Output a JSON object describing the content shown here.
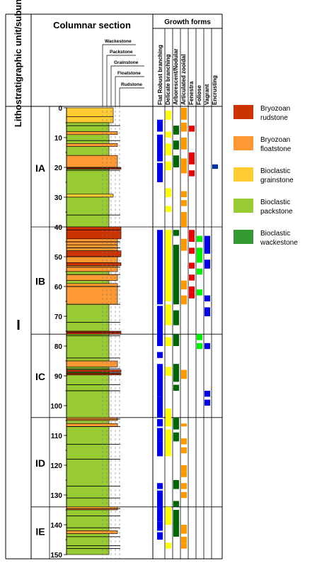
{
  "header": {
    "unit_label": "Lithostratigraphic unit/subunit",
    "columnar_title": "Columnar section",
    "growth_title": "Growth forms"
  },
  "texture_scale": [
    "Wackestone",
    "Packstone",
    "Grainstone",
    "Floatstone",
    "Rudstone"
  ],
  "growth_forms": [
    "Flat Robust branching",
    "Delicate branching",
    "Arborescent/Nodular",
    "Articulated zooidal",
    "Fenestra",
    "Foliose",
    "Vagrant",
    "Encrusting"
  ],
  "unit": "I",
  "subunits": [
    {
      "label": "IA",
      "top": 0,
      "bottom": 40
    },
    {
      "label": "IB",
      "top": 40,
      "bottom": 76
    },
    {
      "label": "IC",
      "top": 76,
      "bottom": 104
    },
    {
      "label": "ID",
      "top": 104,
      "bottom": 134
    },
    {
      "label": "IE",
      "top": 134,
      "bottom": 150
    }
  ],
  "depth_ticks": [
    "0",
    "10",
    "20",
    "30",
    "40",
    "50",
    "60",
    "70",
    "80",
    "90",
    "100",
    "110",
    "120",
    "130",
    "140",
    "150"
  ],
  "colors": {
    "rudstone": "#cc3300",
    "floatstone": "#ff9933",
    "grainstone": "#ffcc33",
    "packstone": "#99cc33",
    "wackestone": "#339933",
    "flat_robust": "#0000ee",
    "delicate": "#ffff00",
    "arborescent": "#006600",
    "articulated": "#ff9900",
    "fenestra": "#ee0000",
    "foliose": "#00ee00",
    "vagrant": "#0000ee",
    "encrusting": "#003399"
  },
  "legend": [
    {
      "label": "Bryozoan rudstone",
      "color": "#cc3300"
    },
    {
      "label": "Bryozoan floatstone",
      "color": "#ff9933"
    },
    {
      "label": "Bioclastic grainstone",
      "color": "#ffcc33"
    },
    {
      "label": "Bioclastic packstone",
      "color": "#99cc33"
    },
    {
      "label": "Bioclastic wackestone",
      "color": "#339933"
    }
  ]
}
